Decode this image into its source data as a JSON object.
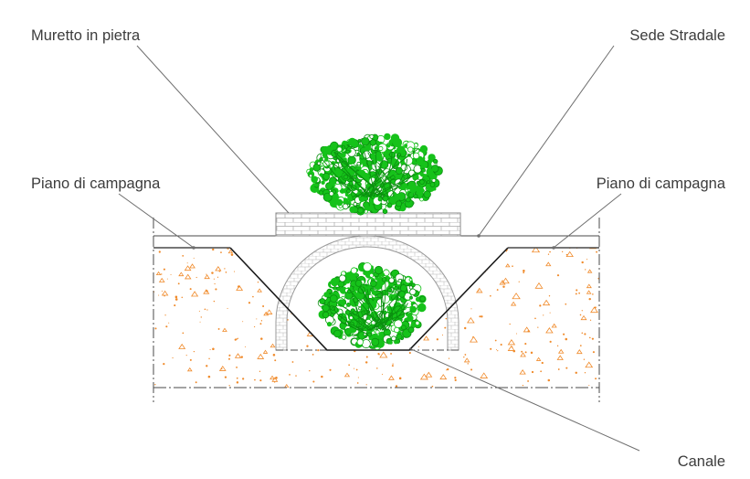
{
  "labels": {
    "wall": "Muretto in pietra",
    "road": "Sede Stradale",
    "ground_left": "Piano di campagna",
    "ground_right": "Piano di campagna",
    "channel": "Canale"
  },
  "colors": {
    "soil_dots": "#f08a2a",
    "vegetation": "#16c21a",
    "vegetation_dark": "#0a8f0f",
    "masonry": "#a8a8a8",
    "lines": "#4a4a4a",
    "leader": "#6e6e6e",
    "text": "#3c3c3c"
  },
  "icons": {
    "tree_top": "tree-canopy-icon",
    "tree_under_arch": "tree-canopy-icon"
  }
}
